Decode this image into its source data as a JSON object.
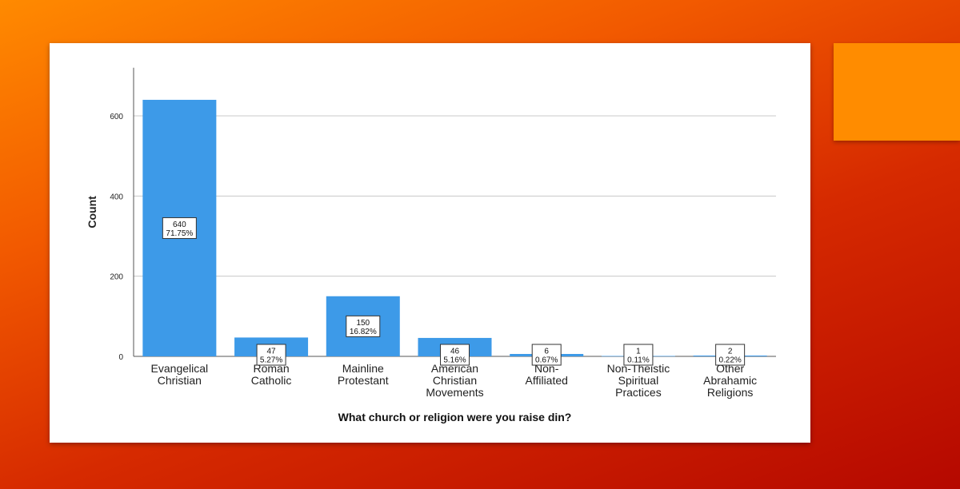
{
  "colors": {
    "bar": "#3d9ae8",
    "accent": "#ff8c00"
  },
  "chart_data": {
    "type": "bar",
    "categories": [
      [
        "Evangelical",
        "Christian"
      ],
      [
        "Roman",
        "Catholic"
      ],
      [
        "Mainline",
        "Protestant"
      ],
      [
        "American",
        "Christian",
        "Movements"
      ],
      [
        "Non-",
        "Affiliated"
      ],
      [
        "Non-Theistic",
        "Spiritual",
        "Practices"
      ],
      [
        "Other",
        "Abrahamic",
        "Religions"
      ]
    ],
    "values": [
      640,
      47,
      150,
      46,
      6,
      1,
      2
    ],
    "percent_labels": [
      "71.75%",
      "5.27%",
      "16.82%",
      "5.16%",
      "0.67%",
      "0.11%",
      "0.22%"
    ],
    "ylabel": "Count",
    "xlabel": "What church or religion were you raise din?",
    "yticks": [
      0,
      200,
      400,
      600
    ],
    "ylim": [
      0,
      720
    ],
    "grid": true
  }
}
